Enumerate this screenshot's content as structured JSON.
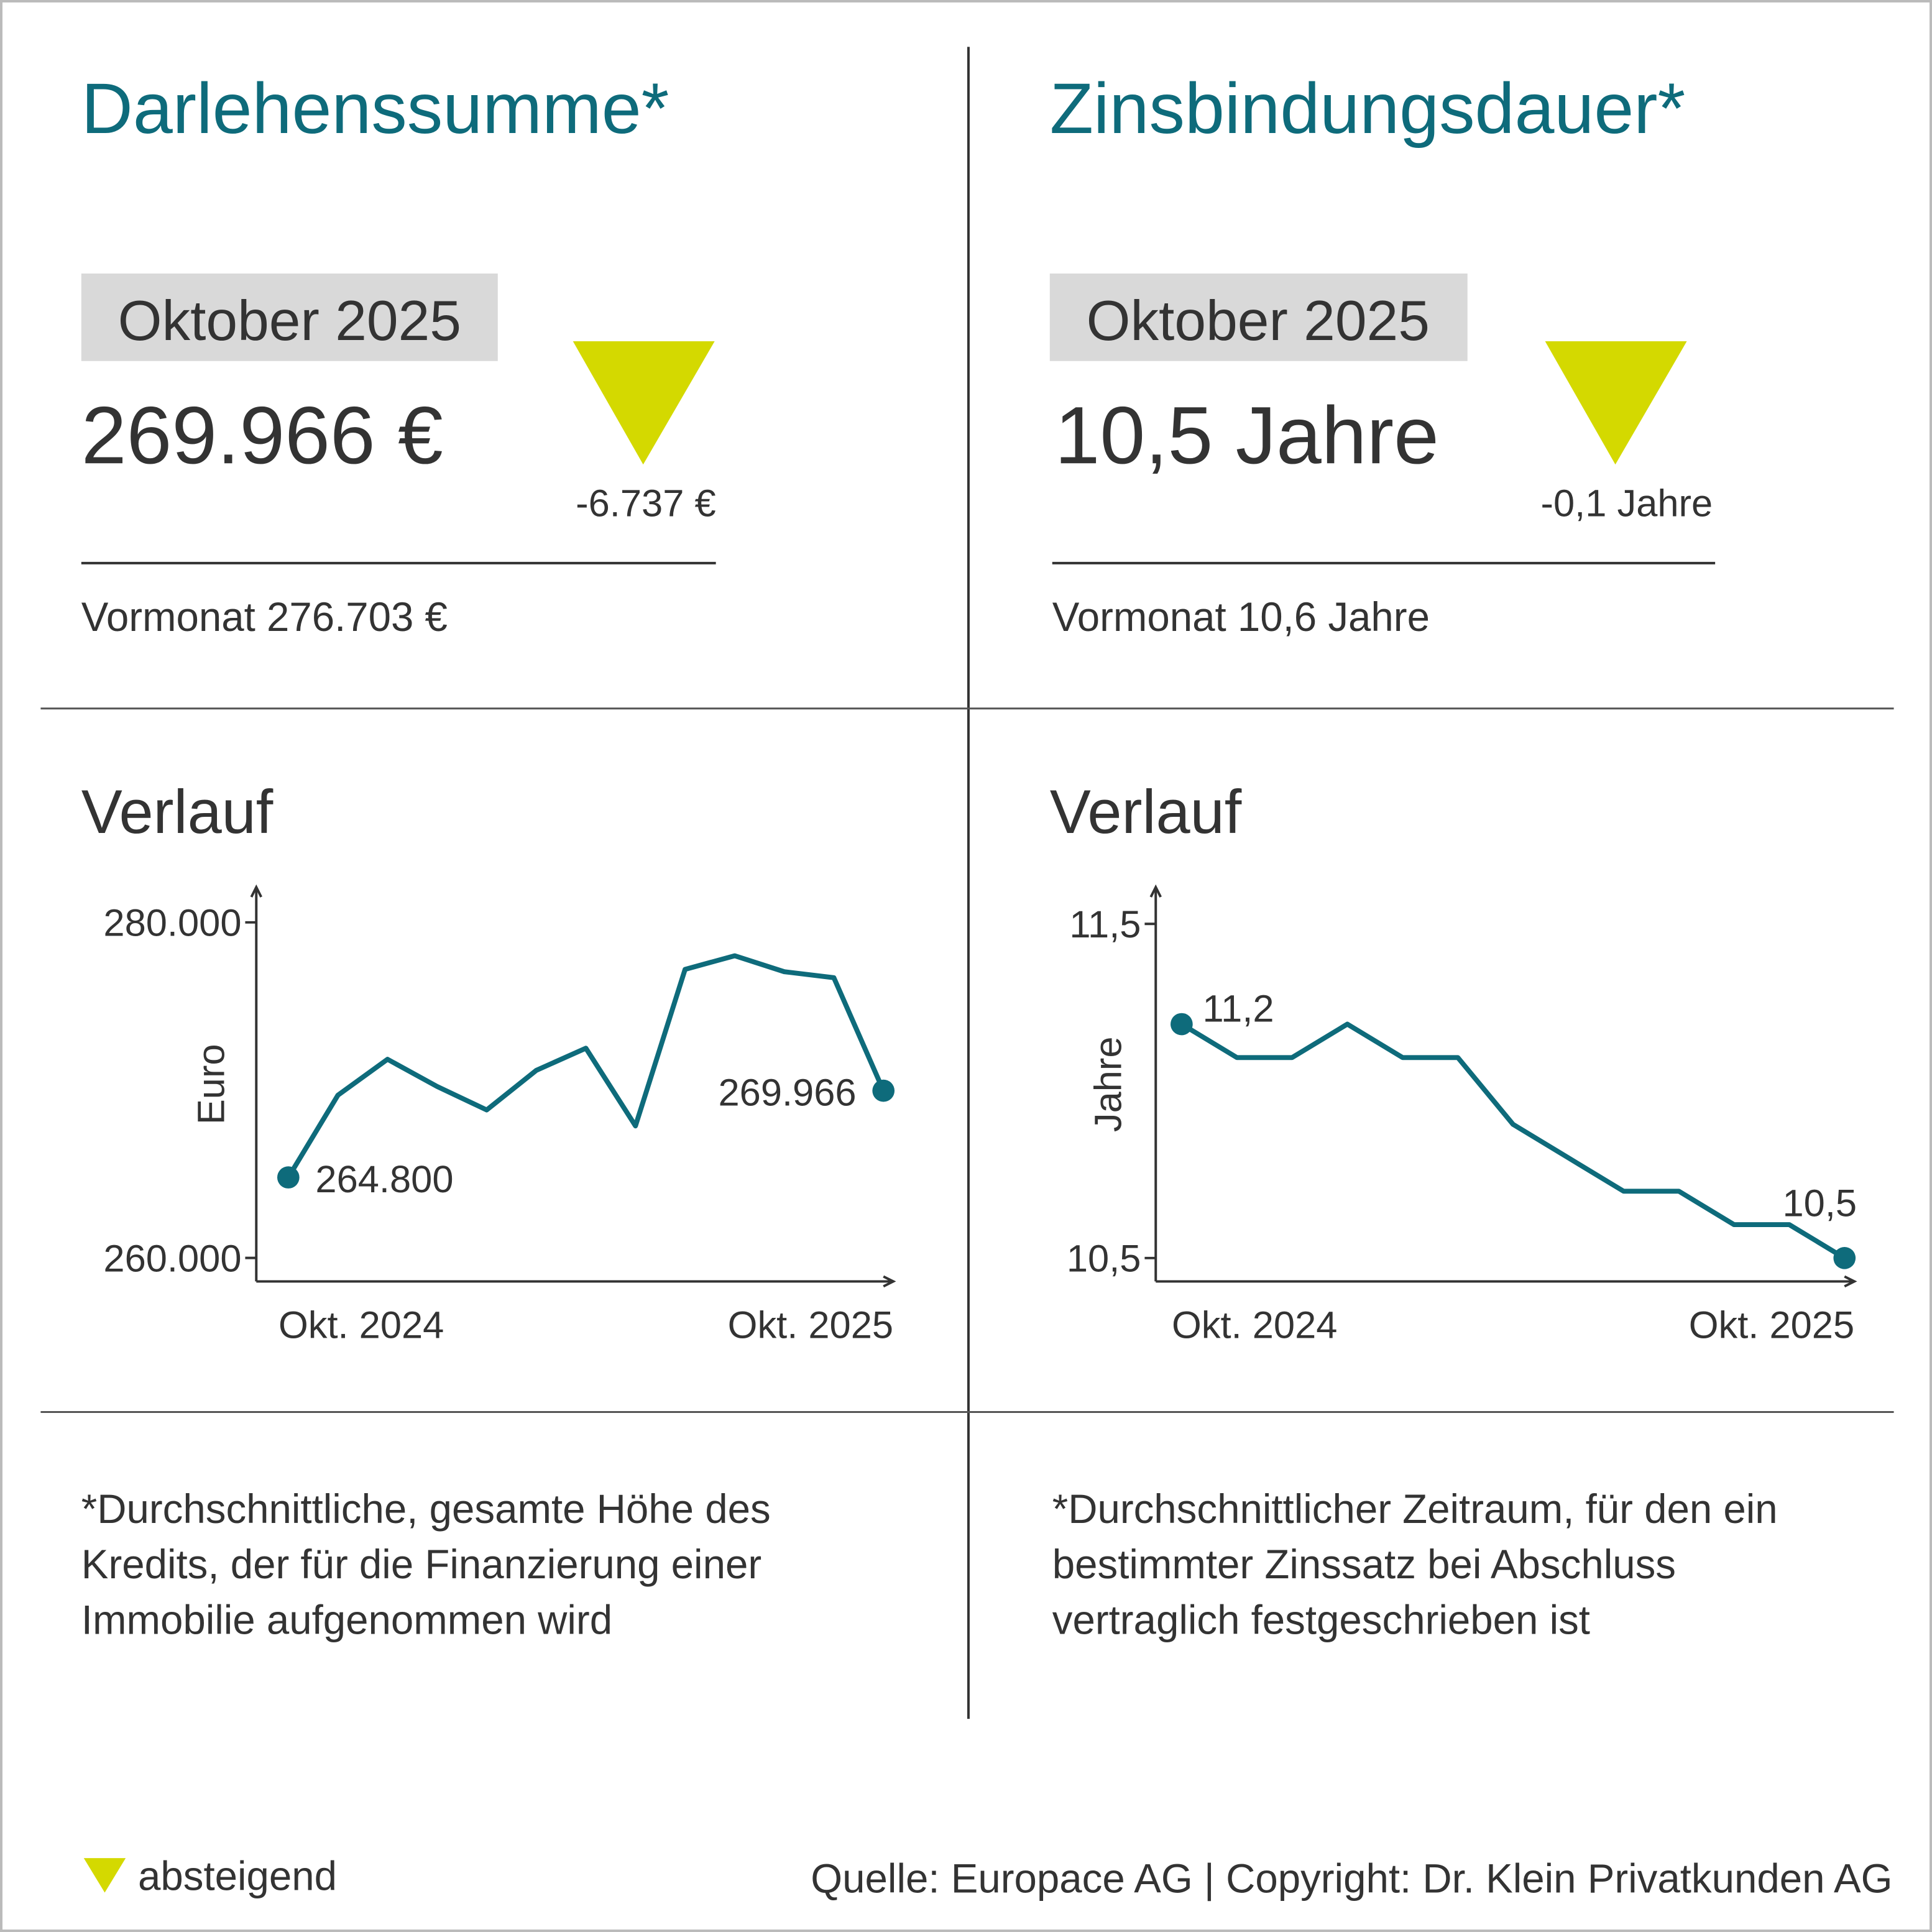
{
  "panels": [
    {
      "title": "Darlehenssumme*",
      "period": "Oktober 2025",
      "value": "269.966 €",
      "change": "-6.737 €",
      "previous": "Vormonat 276.703 €",
      "footnote": [
        "*Durchschnittliche, gesamte Höhe des",
        "Kredits, der für die Finanzierung einer",
        "Immobilie aufgenommen wird"
      ]
    },
    {
      "title": "Zinsbindungsdauer*",
      "period": "Oktober 2025",
      "value": "10,5 Jahre",
      "change": "-0,1 Jahre",
      "previous": "Vormonat 10,6 Jahre",
      "footnote": [
        "*Durchschnittlicher Zeitraum, für den ein",
        "bestimmter Zinssatz bei Abschluss",
        "vertraglich festgeschrieben ist"
      ]
    }
  ],
  "chart_data": [
    {
      "type": "line",
      "title": "Verlauf",
      "y_label": "Euro",
      "color": "#0e6b7b",
      "categories": [
        "Okt. 2024",
        null,
        null,
        null,
        null,
        null,
        null,
        null,
        null,
        null,
        null,
        null,
        "Okt. 2025"
      ],
      "values": [
        264800,
        269700,
        271840,
        270220,
        268820,
        271180,
        272500,
        267870,
        277200,
        278010,
        277060,
        276703,
        269966
      ],
      "value_labels": [
        "264.800",
        null,
        null,
        null,
        null,
        null,
        null,
        null,
        null,
        null,
        null,
        null,
        "269.966"
      ],
      "ylim": [
        258600,
        282100
      ],
      "yticks": [
        {
          "value": 260000,
          "label": "260.000"
        },
        {
          "value": 280000,
          "label": "280.000"
        }
      ]
    },
    {
      "type": "line",
      "title": "Verlauf",
      "y_label": "Jahre",
      "color": "#0e6b7b",
      "categories": [
        "Okt. 2024",
        null,
        null,
        null,
        null,
        null,
        null,
        null,
        null,
        null,
        null,
        null,
        "Okt. 2025"
      ],
      "values": [
        11.2,
        11.1,
        11.1,
        11.2,
        11.1,
        11.1,
        10.9,
        10.8,
        10.7,
        10.7,
        10.6,
        10.6,
        10.5
      ],
      "value_labels": [
        "11,2",
        null,
        null,
        null,
        null,
        null,
        null,
        null,
        null,
        null,
        null,
        null,
        "10,5"
      ],
      "ylim": [
        10.43,
        11.61
      ],
      "yticks": [
        {
          "value": 10.5,
          "label": "10,5"
        },
        {
          "value": 11.5,
          "label": "11,5"
        }
      ]
    }
  ],
  "legend": "absteigend",
  "source": "Quelle: Europace AG | Copyright: Dr. Klein Privatkunden AG"
}
